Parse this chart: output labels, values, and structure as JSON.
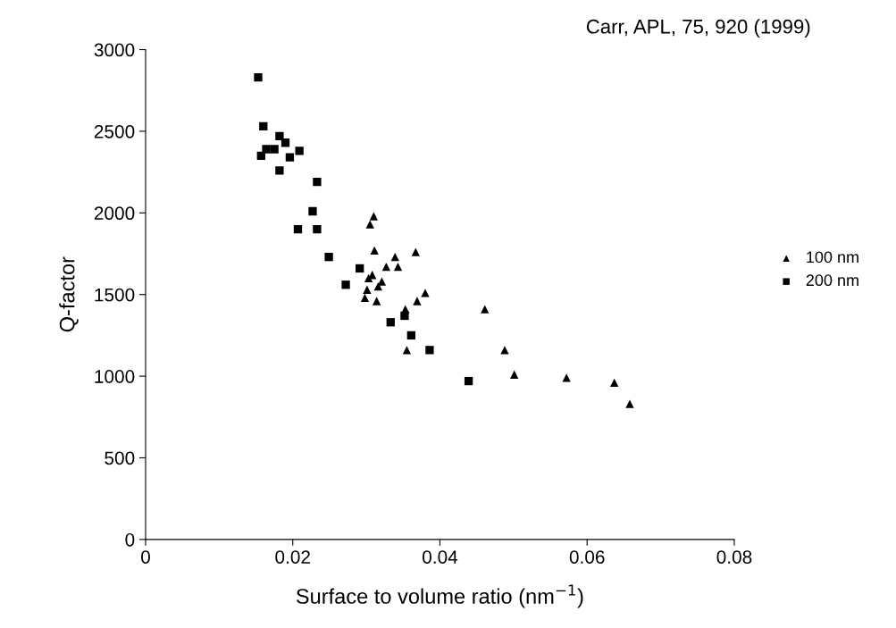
{
  "chart_data": {
    "type": "scatter",
    "xlabel": "Surface to volume ratio (nm$^{−1}$)",
    "ylabel": "Q-factor",
    "annotations": [
      "Carr, APL, 75, 920 (1999)"
    ],
    "xlim": [
      0,
      0.08
    ],
    "xticks": [
      0,
      0.02,
      0.04,
      0.06,
      0.08
    ],
    "ylim": [
      0,
      3000
    ],
    "yticks": [
      0,
      500,
      1000,
      1500,
      2000,
      2500,
      3000
    ],
    "grid": false,
    "legend": "right",
    "series": [
      {
        "name": "100 nm",
        "color": "#000000",
        "marker": "triangle",
        "x": [
          0.031,
          0.0305,
          0.0311,
          0.0339,
          0.0367,
          0.0327,
          0.0343,
          0.0308,
          0.0303,
          0.0321,
          0.0316,
          0.0301,
          0.0298,
          0.0314,
          0.038,
          0.0369,
          0.0353,
          0.0355,
          0.0461,
          0.0488,
          0.0501,
          0.0572,
          0.0637,
          0.0658
        ],
        "values": [
          1980,
          1930,
          1770,
          1730,
          1760,
          1670,
          1670,
          1620,
          1600,
          1580,
          1550,
          1530,
          1480,
          1460,
          1510,
          1460,
          1410,
          1160,
          1410,
          1160,
          1010,
          990,
          960,
          830
        ]
      },
      {
        "name": "200 nm",
        "color": "#000000",
        "marker": "square",
        "x": [
          0.0153,
          0.016,
          0.0182,
          0.019,
          0.0164,
          0.0175,
          0.0157,
          0.0209,
          0.0196,
          0.0182,
          0.0233,
          0.0227,
          0.0207,
          0.0233,
          0.0249,
          0.0291,
          0.0272,
          0.0333,
          0.0352,
          0.0361,
          0.0386,
          0.0439
        ],
        "values": [
          2830,
          2530,
          2470,
          2430,
          2390,
          2390,
          2350,
          2380,
          2340,
          2260,
          2190,
          2010,
          1900,
          1900,
          1730,
          1660,
          1560,
          1330,
          1370,
          1250,
          1160,
          970
        ]
      }
    ]
  }
}
